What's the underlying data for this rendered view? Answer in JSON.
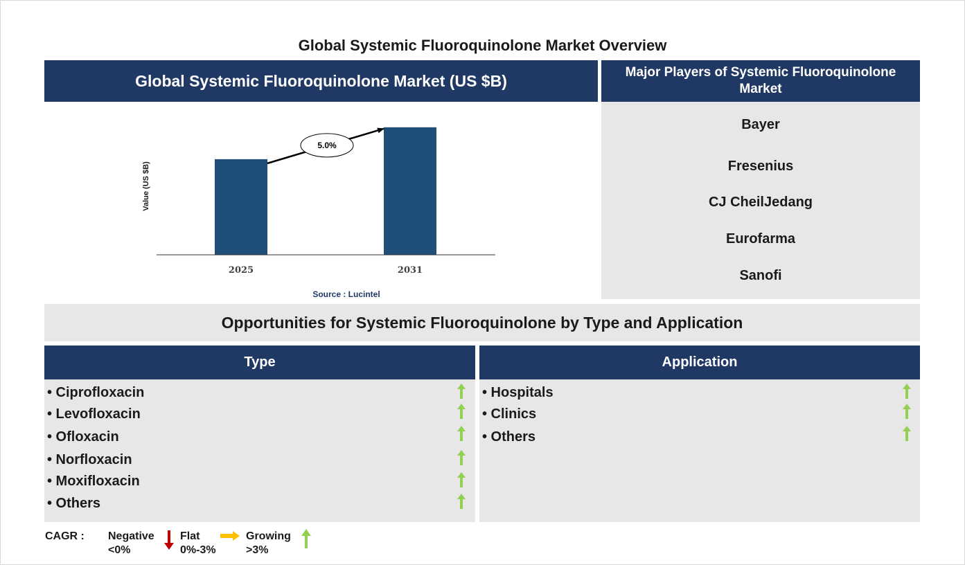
{
  "page": {
    "title": "Global Systemic Fluoroquinolone Market Overview"
  },
  "chart_panel": {
    "header": "Global Systemic Fluoroquinolone Market (US $B)",
    "source": "Source : Lucintel"
  },
  "chart_data": {
    "type": "bar",
    "categories": [
      "2025",
      "2031"
    ],
    "values": [
      0.75,
      1.0
    ],
    "ylabel": "Value (US $B)",
    "xlabel": "",
    "ylim": [
      0,
      1.2
    ],
    "annotation": "5.0%",
    "bar_color": "#1f4e79"
  },
  "players": {
    "header": "Major Players of Systemic Fluoroquinolone Market",
    "items": [
      "Bayer",
      "Fresenius",
      "CJ CheilJedang",
      "Eurofarma",
      "Sanofi"
    ]
  },
  "opportunities": {
    "title": "Opportunities for Systemic Fluoroquinolone by Type and Application",
    "type": {
      "header": "Type",
      "items": [
        "• Ciprofloxacin",
        "• Levofloxacin",
        "• Ofloxacin",
        "• Norfloxacin",
        "• Moxifloxacin",
        "• Others"
      ],
      "trend": "growing"
    },
    "application": {
      "header": "Application",
      "items": [
        "• Hospitals",
        "• Clinics",
        "• Others"
      ],
      "trend": "growing"
    }
  },
  "legend": {
    "label": "CAGR :",
    "negative": {
      "line1": "Negative",
      "line2": "<0%",
      "color": "#c00000",
      "icon": "down-arrow-icon"
    },
    "flat": {
      "line1": "Flat",
      "line2": "0%-3%",
      "color": "#ffc000",
      "icon": "right-arrow-icon"
    },
    "growing": {
      "line1": "Growing",
      "line2": ">3%",
      "color": "#92d050",
      "icon": "up-arrow-icon"
    }
  },
  "colors": {
    "navy": "#1f3864",
    "panel_grey": "#e7e7e7",
    "growth_green": "#92d050"
  }
}
